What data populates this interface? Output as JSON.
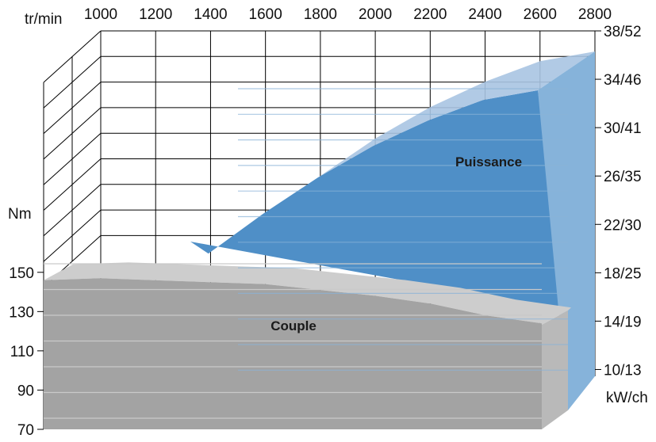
{
  "chart_data": {
    "type": "area",
    "x_axis": {
      "label": "tr/min",
      "ticks": [
        "1000",
        "1200",
        "1400",
        "1600",
        "1800",
        "2000",
        "2200",
        "2400",
        "2600",
        "2800"
      ],
      "range": [
        1000,
        2800
      ]
    },
    "left_axis": {
      "label": "Nm",
      "ticks": [
        "70",
        "90",
        "110",
        "130",
        "150"
      ],
      "range": [
        70,
        160
      ]
    },
    "right_axis": {
      "label": "kW/ch",
      "ticks": [
        "10/13",
        "14/19",
        "18/25",
        "22/30",
        "26/35",
        "30/41",
        "34/46",
        "38/52"
      ],
      "range": [
        8,
        38
      ]
    },
    "series": [
      {
        "name": "Puissance",
        "axis": "right",
        "color": "#4f8fc7",
        "x": [
          1000,
          1200,
          1400,
          1600,
          1800,
          2000,
          2200,
          2400,
          2600,
          2800
        ],
        "y": [
          10.2,
          14.6,
          18.8,
          22.8,
          26.1,
          29.1,
          31.7,
          33.8,
          35.5,
          36.3
        ]
      },
      {
        "name": "Couple",
        "axis": "left",
        "color": "#a3a3a3",
        "x": [
          1000,
          1200,
          1400,
          1600,
          1800,
          2000,
          2200,
          2400,
          2600,
          2800
        ],
        "y": [
          146,
          147,
          146,
          145,
          144,
          141,
          138,
          134,
          128,
          124
        ]
      }
    ],
    "colors": {
      "power_front": "#4f8fc7",
      "power_side": "#86b3da",
      "power_top": "#a9c4e2",
      "torque_front": "#a3a3a3",
      "torque_side": "#b9b9b9",
      "torque_top": "#cdcdcd",
      "grid": "#000000"
    },
    "grid": true
  }
}
